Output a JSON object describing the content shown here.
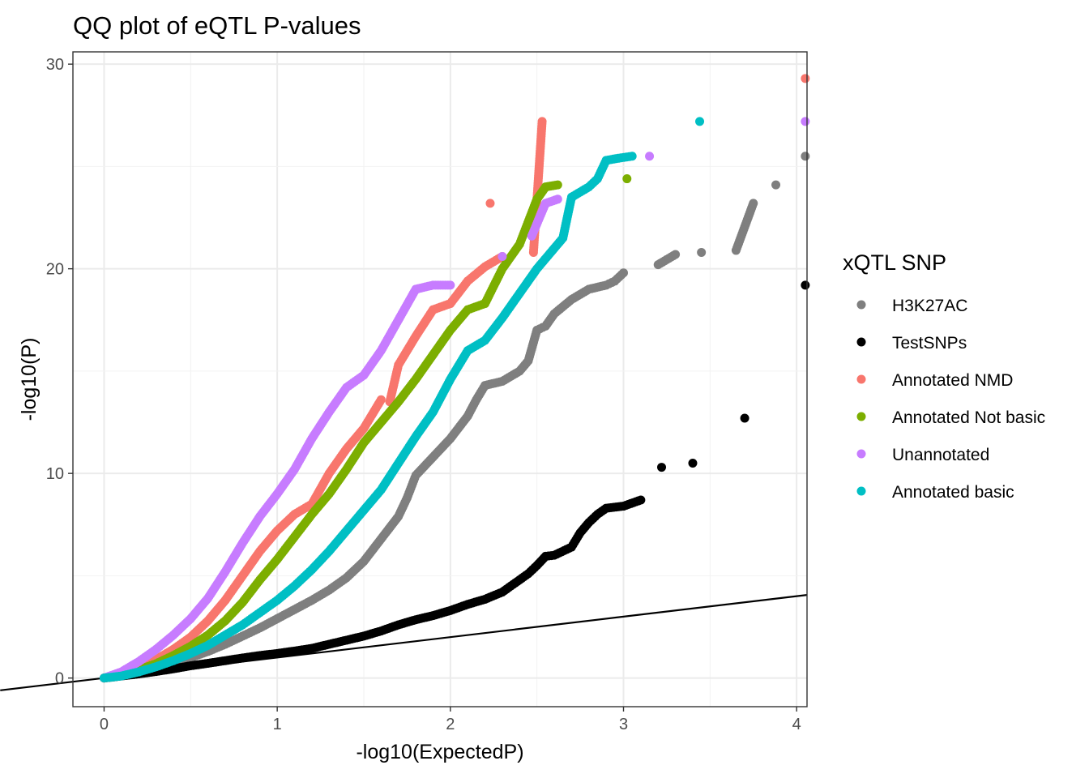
{
  "chart_data": {
    "type": "scatter",
    "title": "QQ plot of eQTL P-values",
    "xlabel": "-log10(ExpectedP)",
    "ylabel": "-log10(P)",
    "xlim": [
      -0.18,
      4.06
    ],
    "ylim": [
      -1.4,
      30.6
    ],
    "x_ticks": [
      0,
      1,
      2,
      3,
      4
    ],
    "x_tick_labels": [
      "0",
      "1",
      "2",
      "3",
      "4"
    ],
    "y_ticks": [
      0,
      10,
      20,
      30
    ],
    "y_tick_labels": [
      "0",
      "10",
      "20",
      "30"
    ],
    "grid": true,
    "reference_line": {
      "slope": 1,
      "intercept": 0
    },
    "legend": {
      "title": "xQTL SNP",
      "position": "right",
      "entries": [
        "H3K27AC",
        "TestSNPs",
        "Annotated NMD",
        "Annotated Not basic",
        "Unannotated",
        "Annotated basic"
      ]
    },
    "series": [
      {
        "name": "H3K27AC",
        "color": "#7f7f7f",
        "points": [
          [
            0.0,
            0.0
          ],
          [
            0.1,
            0.15
          ],
          [
            0.2,
            0.3
          ],
          [
            0.3,
            0.5
          ],
          [
            0.4,
            0.75
          ],
          [
            0.5,
            1.0
          ],
          [
            0.6,
            1.3
          ],
          [
            0.7,
            1.65
          ],
          [
            0.8,
            2.05
          ],
          [
            0.9,
            2.45
          ],
          [
            1.0,
            2.9
          ],
          [
            1.1,
            3.35
          ],
          [
            1.2,
            3.8
          ],
          [
            1.3,
            4.3
          ],
          [
            1.4,
            4.9
          ],
          [
            1.5,
            5.7
          ],
          [
            1.6,
            6.8
          ],
          [
            1.7,
            7.9
          ],
          [
            1.75,
            8.8
          ],
          [
            1.8,
            9.9
          ],
          [
            1.9,
            10.8
          ],
          [
            2.0,
            11.7
          ],
          [
            2.1,
            12.8
          ],
          [
            2.15,
            13.6
          ],
          [
            2.2,
            14.3
          ],
          [
            2.3,
            14.5
          ],
          [
            2.4,
            15.0
          ],
          [
            2.45,
            15.5
          ],
          [
            2.5,
            17.0
          ],
          [
            2.55,
            17.2
          ],
          [
            2.6,
            17.8
          ],
          [
            2.7,
            18.5
          ],
          [
            2.8,
            19.0
          ],
          [
            2.9,
            19.2
          ],
          [
            2.95,
            19.4
          ],
          [
            3.0,
            19.8
          ],
          [
            3.2,
            20.2
          ],
          [
            3.3,
            20.7
          ],
          [
            3.45,
            20.8
          ],
          [
            3.65,
            20.9
          ],
          [
            3.75,
            23.2
          ],
          [
            3.88,
            24.1
          ],
          [
            4.05,
            25.5
          ]
        ]
      },
      {
        "name": "TestSNPs",
        "color": "#000000",
        "points": [
          [
            0.0,
            0.0
          ],
          [
            0.1,
            0.1
          ],
          [
            0.2,
            0.2
          ],
          [
            0.3,
            0.32
          ],
          [
            0.4,
            0.45
          ],
          [
            0.5,
            0.6
          ],
          [
            0.6,
            0.72
          ],
          [
            0.7,
            0.85
          ],
          [
            0.8,
            0.98
          ],
          [
            0.9,
            1.1
          ],
          [
            1.0,
            1.2
          ],
          [
            1.1,
            1.32
          ],
          [
            1.2,
            1.45
          ],
          [
            1.3,
            1.65
          ],
          [
            1.4,
            1.85
          ],
          [
            1.5,
            2.05
          ],
          [
            1.6,
            2.3
          ],
          [
            1.7,
            2.6
          ],
          [
            1.8,
            2.85
          ],
          [
            1.9,
            3.05
          ],
          [
            2.0,
            3.3
          ],
          [
            2.1,
            3.6
          ],
          [
            2.2,
            3.85
          ],
          [
            2.3,
            4.2
          ],
          [
            2.35,
            4.5
          ],
          [
            2.45,
            5.1
          ],
          [
            2.5,
            5.5
          ],
          [
            2.55,
            5.95
          ],
          [
            2.6,
            6.0
          ],
          [
            2.7,
            6.4
          ],
          [
            2.75,
            7.1
          ],
          [
            2.8,
            7.6
          ],
          [
            2.85,
            8.0
          ],
          [
            2.9,
            8.3
          ],
          [
            3.0,
            8.4
          ],
          [
            3.1,
            8.7
          ],
          [
            3.22,
            10.3
          ],
          [
            3.4,
            10.5
          ],
          [
            3.7,
            12.7
          ],
          [
            4.05,
            19.2
          ]
        ]
      },
      {
        "name": "Annotated NMD",
        "color": "#f8766d",
        "points": [
          [
            0.0,
            0.0
          ],
          [
            0.1,
            0.2
          ],
          [
            0.2,
            0.5
          ],
          [
            0.3,
            0.9
          ],
          [
            0.4,
            1.4
          ],
          [
            0.5,
            2.0
          ],
          [
            0.6,
            2.8
          ],
          [
            0.7,
            3.8
          ],
          [
            0.8,
            5.0
          ],
          [
            0.9,
            6.2
          ],
          [
            1.0,
            7.2
          ],
          [
            1.1,
            8.0
          ],
          [
            1.2,
            8.5
          ],
          [
            1.3,
            10.0
          ],
          [
            1.4,
            11.2
          ],
          [
            1.5,
            12.2
          ],
          [
            1.6,
            13.6
          ],
          [
            1.65,
            13.5
          ],
          [
            1.7,
            15.3
          ],
          [
            1.8,
            16.7
          ],
          [
            1.9,
            18.0
          ],
          [
            2.0,
            18.3
          ],
          [
            2.1,
            19.4
          ],
          [
            2.2,
            20.1
          ],
          [
            2.3,
            20.6
          ],
          [
            2.23,
            23.2
          ],
          [
            2.48,
            20.8
          ],
          [
            2.53,
            27.2
          ],
          [
            4.05,
            29.3
          ]
        ]
      },
      {
        "name": "Annotated Not basic",
        "color": "#7cae00",
        "points": [
          [
            0.0,
            0.0
          ],
          [
            0.1,
            0.15
          ],
          [
            0.2,
            0.4
          ],
          [
            0.3,
            0.7
          ],
          [
            0.4,
            1.1
          ],
          [
            0.5,
            1.55
          ],
          [
            0.6,
            2.1
          ],
          [
            0.7,
            2.8
          ],
          [
            0.8,
            3.7
          ],
          [
            0.9,
            4.8
          ],
          [
            1.0,
            5.8
          ],
          [
            1.1,
            6.9
          ],
          [
            1.2,
            8.0
          ],
          [
            1.3,
            9.0
          ],
          [
            1.4,
            10.2
          ],
          [
            1.5,
            11.5
          ],
          [
            1.6,
            12.5
          ],
          [
            1.7,
            13.5
          ],
          [
            1.8,
            14.6
          ],
          [
            1.9,
            15.8
          ],
          [
            2.0,
            17.0
          ],
          [
            2.1,
            18.0
          ],
          [
            2.2,
            18.3
          ],
          [
            2.3,
            20.0
          ],
          [
            2.4,
            21.2
          ],
          [
            2.5,
            23.4
          ],
          [
            2.55,
            24.0
          ],
          [
            2.62,
            24.1
          ],
          [
            3.02,
            24.4
          ]
        ]
      },
      {
        "name": "Unannotated",
        "color": "#c77cff",
        "points": [
          [
            0.0,
            0.0
          ],
          [
            0.1,
            0.3
          ],
          [
            0.2,
            0.8
          ],
          [
            0.3,
            1.4
          ],
          [
            0.4,
            2.1
          ],
          [
            0.5,
            2.9
          ],
          [
            0.6,
            3.9
          ],
          [
            0.7,
            5.2
          ],
          [
            0.8,
            6.6
          ],
          [
            0.9,
            7.9
          ],
          [
            1.0,
            9.0
          ],
          [
            1.1,
            10.2
          ],
          [
            1.2,
            11.7
          ],
          [
            1.3,
            13.0
          ],
          [
            1.4,
            14.2
          ],
          [
            1.5,
            14.8
          ],
          [
            1.6,
            16.0
          ],
          [
            1.7,
            17.5
          ],
          [
            1.8,
            19.0
          ],
          [
            1.9,
            19.2
          ],
          [
            2.0,
            19.2
          ],
          [
            2.3,
            20.6
          ],
          [
            2.47,
            21.6
          ],
          [
            2.55,
            23.2
          ],
          [
            2.62,
            23.4
          ],
          [
            2.85,
            24.4
          ],
          [
            3.15,
            25.5
          ],
          [
            4.05,
            27.2
          ]
        ]
      },
      {
        "name": "Annotated basic",
        "color": "#00bfc4",
        "points": [
          [
            0.0,
            0.0
          ],
          [
            0.1,
            0.1
          ],
          [
            0.2,
            0.3
          ],
          [
            0.3,
            0.55
          ],
          [
            0.4,
            0.85
          ],
          [
            0.5,
            1.2
          ],
          [
            0.6,
            1.6
          ],
          [
            0.7,
            2.1
          ],
          [
            0.8,
            2.6
          ],
          [
            0.9,
            3.2
          ],
          [
            1.0,
            3.8
          ],
          [
            1.1,
            4.5
          ],
          [
            1.2,
            5.3
          ],
          [
            1.3,
            6.2
          ],
          [
            1.4,
            7.2
          ],
          [
            1.5,
            8.2
          ],
          [
            1.6,
            9.2
          ],
          [
            1.7,
            10.5
          ],
          [
            1.8,
            11.8
          ],
          [
            1.9,
            13.0
          ],
          [
            2.0,
            14.6
          ],
          [
            2.1,
            16.0
          ],
          [
            2.2,
            16.5
          ],
          [
            2.3,
            17.6
          ],
          [
            2.4,
            18.8
          ],
          [
            2.5,
            20.0
          ],
          [
            2.6,
            21.0
          ],
          [
            2.65,
            21.5
          ],
          [
            2.7,
            23.5
          ],
          [
            2.8,
            24.0
          ],
          [
            2.85,
            24.4
          ],
          [
            2.9,
            25.3
          ],
          [
            2.97,
            25.4
          ],
          [
            3.05,
            25.5
          ],
          [
            3.44,
            27.2
          ]
        ]
      }
    ]
  }
}
